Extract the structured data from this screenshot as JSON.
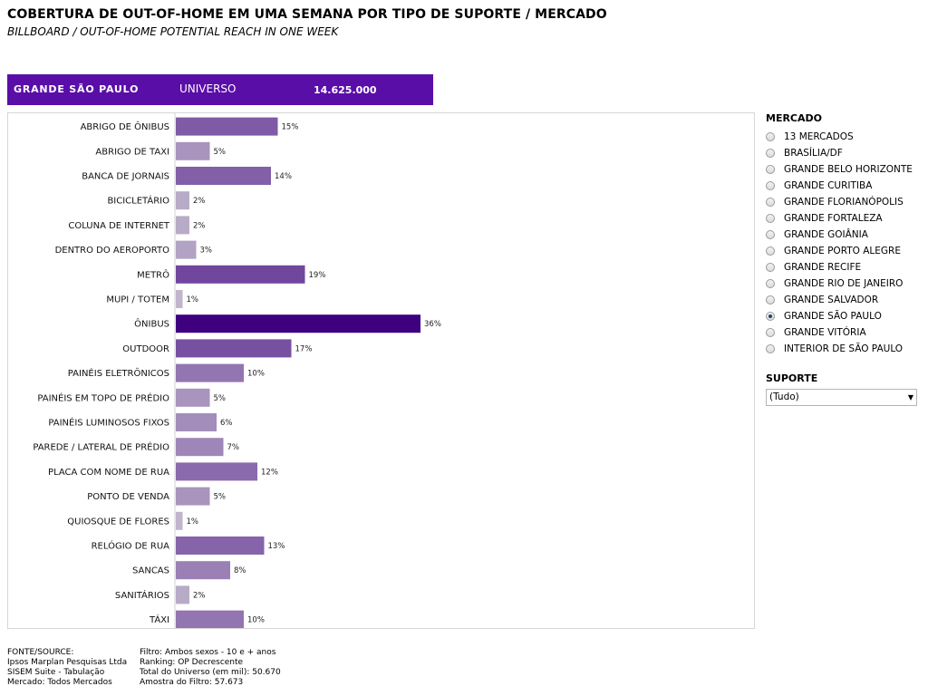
{
  "header": {
    "title": "COBERTURA DE OUT-OF-HOME EM UMA SEMANA POR TIPO DE SUPORTE / MERCADO",
    "subtitle": "BILLBOARD / OUT-OF-HOME POTENTIAL REACH IN ONE WEEK"
  },
  "banner": {
    "market": "GRANDE SÃO PAULO",
    "universe_label": "UNIVERSO",
    "universe_value": "14.625.000"
  },
  "chart_data": {
    "type": "bar",
    "orientation": "horizontal",
    "title": "",
    "xlabel": "",
    "ylabel": "",
    "xlim": [
      0,
      110
    ],
    "value_suffix": "%",
    "categories": [
      "ABRIGO DE ÔNIBUS",
      "ABRIGO DE TAXI",
      "BANCA DE JORNAIS",
      "BICICLETÁRIO",
      "COLUNA DE INTERNET",
      "DENTRO DO AEROPORTO",
      "METRÔ",
      "MUPI / TOTEM",
      "ÔNIBUS",
      "OUTDOOR",
      "PAINÉIS ELETRÔNICOS",
      "PAINÉIS EM TOPO DE PRÉDIO",
      "PAINÉIS LUMINOSOS FIXOS",
      "PAREDE / LATERAL DE PRÉDIO",
      "PLACA COM NOME DE RUA",
      "PONTO DE VENDA",
      "QUIOSQUE DE FLORES",
      "RELÓGIO DE RUA",
      "SANCAS",
      "SANITÁRIOS",
      "TÁXI"
    ],
    "values": [
      15,
      5,
      14,
      2,
      2,
      3,
      19,
      1,
      36,
      17,
      10,
      5,
      6,
      7,
      12,
      5,
      1,
      13,
      8,
      2,
      10
    ],
    "color_scale": [
      "#cbc5d2",
      "#3f0080"
    ]
  },
  "sidebar": {
    "market_title": "MERCADO",
    "markets": [
      "13 MERCADOS",
      "BRASÍLIA/DF",
      "GRANDE BELO HORIZONTE",
      "GRANDE CURITIBA",
      "GRANDE FLORIANÓPOLIS",
      "GRANDE FORTALEZA",
      "GRANDE GOIÂNIA",
      "GRANDE PORTO ALEGRE",
      "GRANDE RECIFE",
      "GRANDE RIO DE JANEIRO",
      "GRANDE SALVADOR",
      "GRANDE SÃO PAULO",
      "GRANDE VITÓRIA",
      "INTERIOR DE SÃO PAULO"
    ],
    "selected_market": "GRANDE SÃO PAULO",
    "support_title": "SUPORTE",
    "support_value": "(Tudo)"
  },
  "footer": {
    "left": [
      "FONTE/SOURCE:",
      "Ipsos Marplan Pesquisas Ltda",
      "SISEM Suite - Tabulação",
      "Mercado: Todos Mercados"
    ],
    "right": [
      "Filtro: Ambos sexos - 10 e + anos",
      "Ranking: OP  Decrescente",
      "Total do Universo (em mil): 50.670",
      "Amostra do Filtro: 57.673"
    ]
  }
}
